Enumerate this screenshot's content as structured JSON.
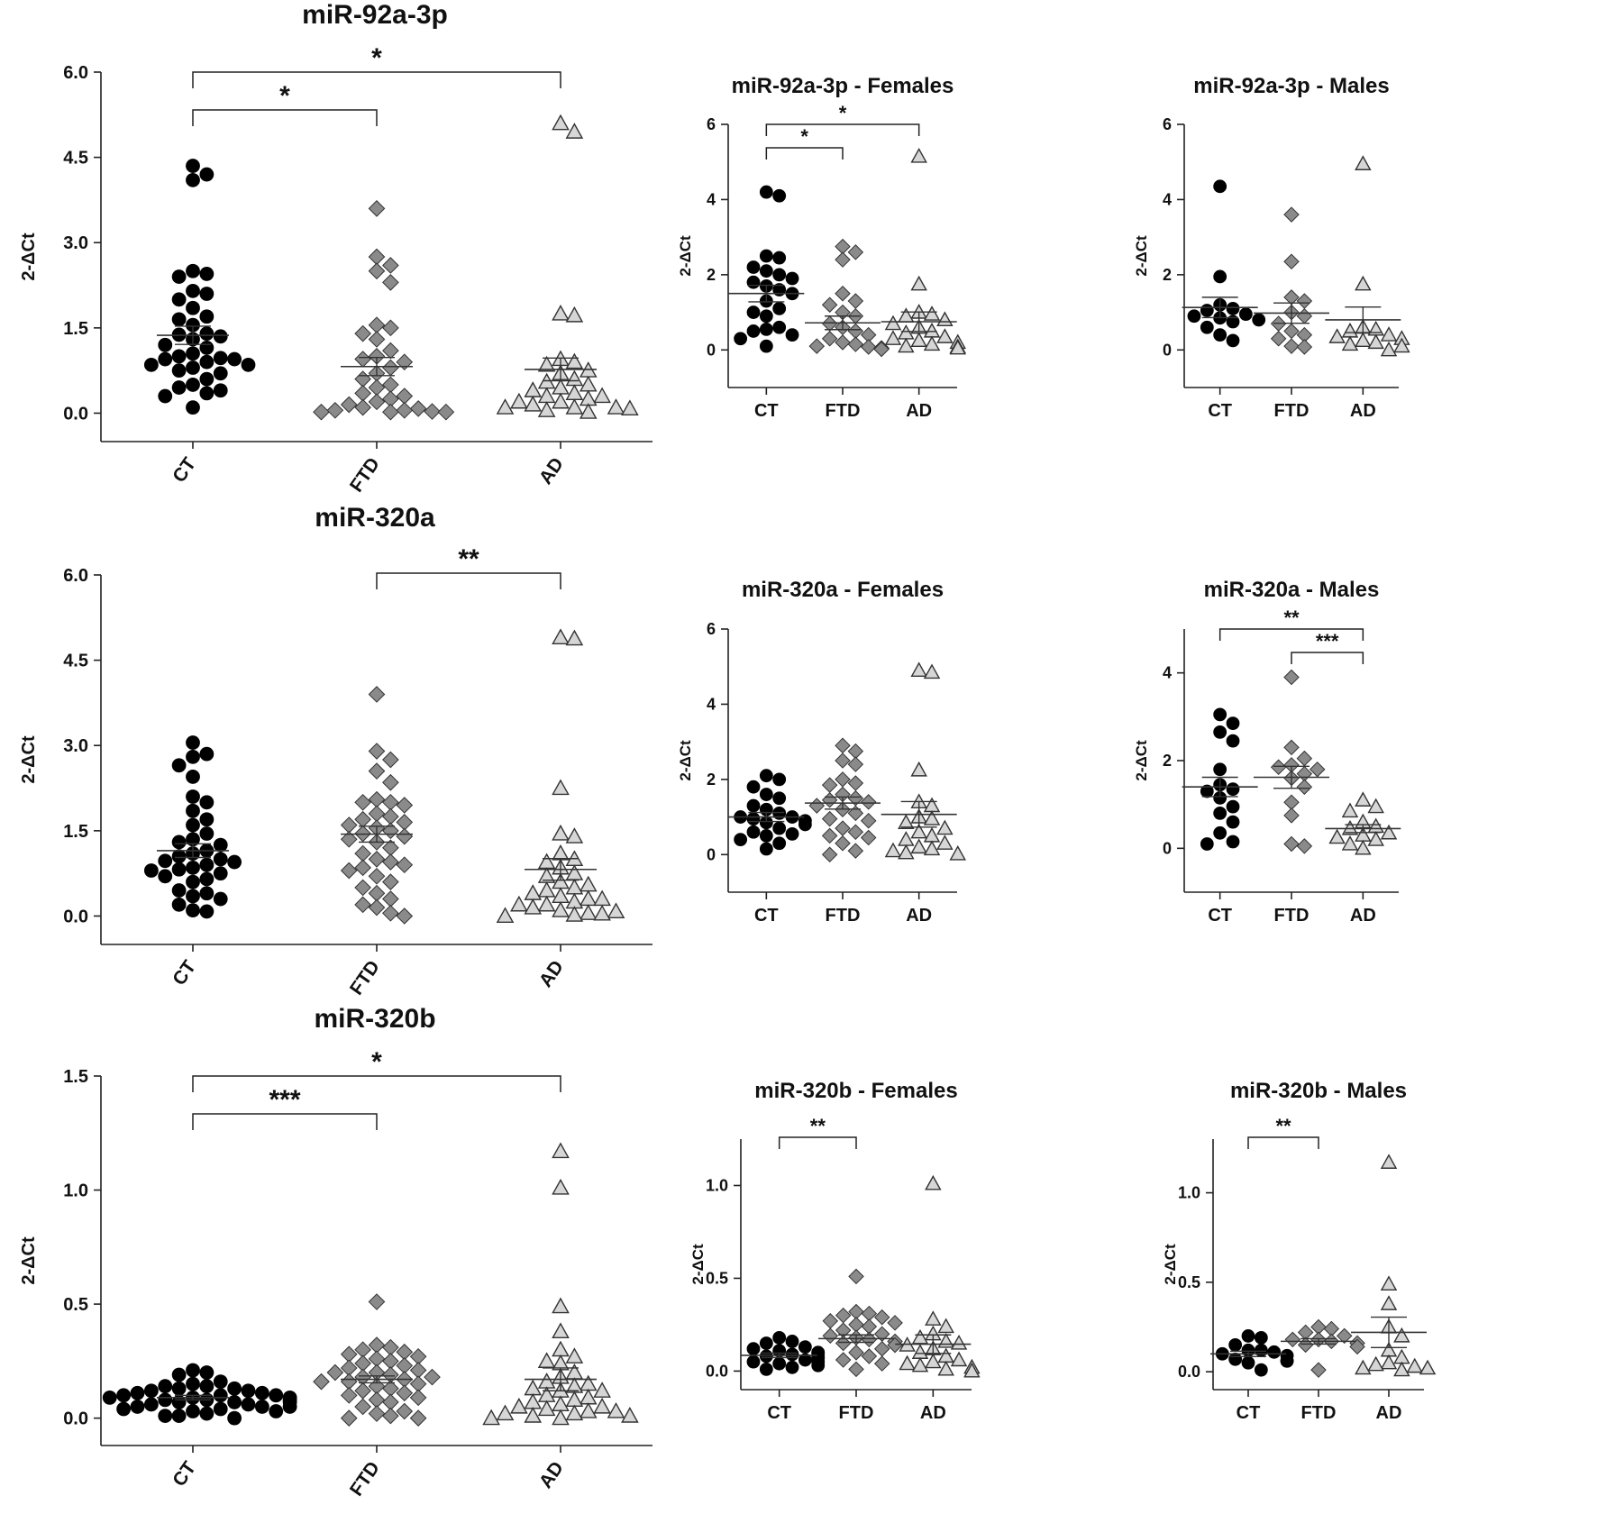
{
  "figure": {
    "colors": {
      "ct": "#000000",
      "ftd": "#8a8a8a",
      "ad": "#d6d6d6",
      "axis": "#222222",
      "text": "#111111"
    },
    "markers": {
      "ct": "circle",
      "ftd": "diamond",
      "ad": "triangle"
    }
  },
  "chart_data": [
    {
      "id": "mir92a-all",
      "type": "scatter",
      "title": "miR-92a-3p",
      "ylabel": "2-ΔCt",
      "categories": [
        "CT",
        "FTD",
        "AD"
      ],
      "rotated_labels": true,
      "ylim": [
        -0.5,
        6.0
      ],
      "yticks": [
        0.0,
        1.5,
        3.0,
        4.5,
        6.0
      ],
      "tick_labels": [
        "0.0",
        "1.5",
        "3.0",
        "4.5",
        "6.0"
      ],
      "means": [
        1.37,
        0.82,
        0.77
      ],
      "sems": [
        0.16,
        0.16,
        0.2
      ],
      "significance": [
        {
          "from": "CT",
          "to": "AD",
          "label": "*"
        },
        {
          "from": "CT",
          "to": "FTD",
          "label": "*"
        }
      ],
      "series": [
        {
          "name": "CT",
          "values": [
            4.1,
            4.2,
            4.35,
            2.5,
            2.45,
            2.4,
            2.15,
            2.1,
            2.0,
            1.85,
            1.7,
            1.65,
            1.55,
            1.4,
            1.38,
            1.35,
            1.3,
            1.2,
            1.15,
            1.05,
            1.0,
            0.97,
            0.95,
            0.95,
            0.9,
            0.85,
            0.85,
            0.8,
            0.75,
            0.7,
            0.6,
            0.5,
            0.45,
            0.4,
            0.35,
            0.3,
            0.1
          ]
        },
        {
          "name": "FTD",
          "values": [
            3.6,
            2.75,
            2.6,
            2.5,
            2.3,
            1.55,
            1.5,
            1.4,
            1.3,
            1.1,
            1.0,
            0.95,
            0.9,
            0.8,
            0.7,
            0.6,
            0.5,
            0.45,
            0.35,
            0.3,
            0.25,
            0.2,
            0.15,
            0.1,
            0.08,
            0.05,
            0.05,
            0.03,
            0.02,
            0.02,
            0.02
          ]
        },
        {
          "name": "AD",
          "values": [
            5.1,
            4.95,
            1.75,
            1.72,
            0.95,
            0.9,
            0.85,
            0.75,
            0.7,
            0.6,
            0.55,
            0.5,
            0.45,
            0.4,
            0.35,
            0.3,
            0.3,
            0.25,
            0.2,
            0.2,
            0.15,
            0.1,
            0.1,
            0.1,
            0.08,
            0.05,
            0.02
          ]
        }
      ]
    },
    {
      "id": "mir92a-females",
      "type": "scatter",
      "title": "miR-92a-3p - Females",
      "ylabel": "2-ΔCt",
      "categories": [
        "CT",
        "FTD",
        "AD"
      ],
      "rotated_labels": false,
      "ylim": [
        -1.0,
        6.0
      ],
      "yticks": [
        0,
        2,
        4,
        6
      ],
      "tick_labels": [
        "0",
        "2",
        "4",
        "6"
      ],
      "means": [
        1.5,
        0.72,
        0.75
      ],
      "sems": [
        0.22,
        0.18,
        0.26
      ],
      "significance": [
        {
          "from": "CT",
          "to": "AD",
          "label": "*"
        },
        {
          "from": "CT",
          "to": "FTD",
          "label": "*"
        }
      ],
      "series": [
        {
          "name": "CT",
          "values": [
            4.1,
            4.2,
            2.5,
            2.45,
            2.2,
            2.1,
            2.0,
            1.9,
            1.8,
            1.7,
            1.6,
            1.5,
            1.3,
            1.1,
            1.0,
            0.9,
            0.6,
            0.55,
            0.5,
            0.4,
            0.3,
            0.1
          ]
        },
        {
          "name": "FTD",
          "values": [
            2.75,
            2.6,
            2.4,
            1.5,
            1.3,
            1.2,
            1.0,
            0.9,
            0.7,
            0.6,
            0.5,
            0.4,
            0.3,
            0.2,
            0.15,
            0.1,
            0.08,
            0.05,
            0.05,
            0.03,
            0.02
          ]
        },
        {
          "name": "AD",
          "values": [
            5.15,
            1.75,
            1.0,
            0.95,
            0.9,
            0.8,
            0.7,
            0.6,
            0.5,
            0.45,
            0.35,
            0.3,
            0.25,
            0.2,
            0.15,
            0.1,
            0.08,
            0.05
          ]
        }
      ]
    },
    {
      "id": "mir92a-males",
      "type": "scatter",
      "title": "miR-92a-3p - Males",
      "ylabel": "2-ΔCt",
      "categories": [
        "CT",
        "FTD",
        "AD"
      ],
      "rotated_labels": false,
      "ylim": [
        -1.0,
        6.0
      ],
      "yticks": [
        0,
        2,
        4,
        6
      ],
      "tick_labels": [
        "0",
        "2",
        "4",
        "6"
      ],
      "means": [
        1.13,
        0.98,
        0.8
      ],
      "sems": [
        0.27,
        0.27,
        0.34
      ],
      "significance": [],
      "series": [
        {
          "name": "CT",
          "values": [
            4.35,
            1.95,
            1.2,
            1.1,
            1.05,
            0.95,
            0.9,
            0.85,
            0.8,
            0.75,
            0.6,
            0.4,
            0.25
          ]
        },
        {
          "name": "FTD",
          "values": [
            3.6,
            2.35,
            1.4,
            1.3,
            1.0,
            0.9,
            0.7,
            0.5,
            0.4,
            0.3,
            0.1,
            0.08
          ]
        },
        {
          "name": "AD",
          "values": [
            4.95,
            1.75,
            0.6,
            0.55,
            0.5,
            0.4,
            0.35,
            0.3,
            0.25,
            0.2,
            0.15,
            0.1,
            0.0
          ]
        }
      ]
    },
    {
      "id": "mir320a-all",
      "type": "scatter",
      "title": "miR-320a",
      "ylabel": "2-ΔCt",
      "categories": [
        "CT",
        "FTD",
        "AD"
      ],
      "rotated_labels": true,
      "ylim": [
        -0.5,
        6.0
      ],
      "yticks": [
        0.0,
        1.5,
        3.0,
        4.5,
        6.0
      ],
      "tick_labels": [
        "0.0",
        "1.5",
        "3.0",
        "4.5",
        "6.0"
      ],
      "means": [
        1.15,
        1.44,
        0.82
      ],
      "sems": [
        0.12,
        0.14,
        0.19
      ],
      "significance": [
        {
          "from": "FTD",
          "to": "AD",
          "label": "**"
        }
      ],
      "series": [
        {
          "name": "CT",
          "values": [
            3.05,
            2.85,
            2.8,
            2.65,
            2.45,
            2.1,
            2.0,
            1.85,
            1.7,
            1.6,
            1.45,
            1.35,
            1.3,
            1.25,
            1.15,
            1.1,
            1.05,
            1.0,
            0.97,
            0.95,
            0.9,
            0.85,
            0.82,
            0.8,
            0.75,
            0.7,
            0.65,
            0.6,
            0.45,
            0.4,
            0.35,
            0.3,
            0.2,
            0.1,
            0.08
          ]
        },
        {
          "name": "FTD",
          "values": [
            3.9,
            2.9,
            2.75,
            2.55,
            2.35,
            2.05,
            2.0,
            2.0,
            1.95,
            1.8,
            1.75,
            1.7,
            1.65,
            1.6,
            1.55,
            1.5,
            1.45,
            1.4,
            1.35,
            1.3,
            1.2,
            1.1,
            1.0,
            0.95,
            0.9,
            0.85,
            0.8,
            0.7,
            0.6,
            0.5,
            0.4,
            0.3,
            0.2,
            0.15,
            0.05,
            0.0
          ]
        },
        {
          "name": "AD",
          "values": [
            4.9,
            4.88,
            2.25,
            1.45,
            1.4,
            1.1,
            1.0,
            0.95,
            0.85,
            0.75,
            0.7,
            0.6,
            0.55,
            0.5,
            0.45,
            0.4,
            0.35,
            0.3,
            0.3,
            0.25,
            0.2,
            0.2,
            0.15,
            0.1,
            0.08,
            0.05,
            0.04,
            0.02,
            0.0
          ]
        }
      ]
    },
    {
      "id": "mir320a-females",
      "type": "scatter",
      "title": "miR-320a - Females",
      "ylabel": "2-ΔCt",
      "categories": [
        "CT",
        "FTD",
        "AD"
      ],
      "rotated_labels": false,
      "ylim": [
        -1.0,
        6.0
      ],
      "yticks": [
        0,
        2,
        4,
        6
      ],
      "tick_labels": [
        "0",
        "2",
        "4",
        "6"
      ],
      "means": [
        1.0,
        1.37,
        1.07
      ],
      "sems": [
        0.12,
        0.16,
        0.34
      ],
      "significance": [],
      "series": [
        {
          "name": "CT",
          "values": [
            2.1,
            2.0,
            1.8,
            1.6,
            1.5,
            1.3,
            1.2,
            1.1,
            1.0,
            1.0,
            0.95,
            0.9,
            0.85,
            0.8,
            0.7,
            0.6,
            0.55,
            0.5,
            0.4,
            0.3,
            0.15
          ]
        },
        {
          "name": "FTD",
          "values": [
            2.9,
            2.75,
            2.5,
            2.4,
            2.0,
            1.9,
            1.85,
            1.6,
            1.5,
            1.45,
            1.4,
            1.3,
            1.2,
            1.1,
            0.95,
            0.9,
            0.7,
            0.6,
            0.5,
            0.45,
            0.3,
            0.1,
            0.0
          ]
        },
        {
          "name": "AD",
          "values": [
            4.85,
            4.9,
            2.25,
            1.4,
            1.3,
            1.0,
            0.95,
            0.85,
            0.7,
            0.6,
            0.5,
            0.4,
            0.3,
            0.2,
            0.15,
            0.1,
            0.05,
            0.02
          ]
        }
      ]
    },
    {
      "id": "mir320a-males",
      "type": "scatter",
      "title": "miR-320a - Males",
      "ylabel": "2-ΔCt",
      "categories": [
        "CT",
        "FTD",
        "AD"
      ],
      "rotated_labels": false,
      "ylim": [
        -1.0,
        5.0
      ],
      "yticks": [
        0,
        2,
        4
      ],
      "tick_labels": [
        "0",
        "2",
        "4"
      ],
      "means": [
        1.4,
        1.62,
        0.45
      ],
      "sems": [
        0.22,
        0.25,
        0.09
      ],
      "significance": [
        {
          "from": "CT",
          "to": "AD",
          "label": "**"
        },
        {
          "from": "FTD",
          "to": "AD",
          "label": "***"
        }
      ],
      "series": [
        {
          "name": "CT",
          "values": [
            3.05,
            2.85,
            2.65,
            2.45,
            1.8,
            1.45,
            1.35,
            1.3,
            1.15,
            0.95,
            0.8,
            0.6,
            0.35,
            0.15,
            0.1
          ]
        },
        {
          "name": "FTD",
          "values": [
            3.9,
            2.3,
            2.05,
            1.9,
            1.85,
            1.8,
            1.7,
            1.6,
            1.4,
            1.05,
            0.75,
            0.1,
            0.05
          ]
        },
        {
          "name": "AD",
          "values": [
            1.1,
            0.95,
            0.85,
            0.6,
            0.5,
            0.45,
            0.35,
            0.3,
            0.25,
            0.2,
            0.1,
            0.0
          ]
        }
      ]
    },
    {
      "id": "mir320b-all",
      "type": "scatter",
      "title": "miR-320b",
      "ylabel": "2-ΔCt",
      "categories": [
        "CT",
        "FTD",
        "AD"
      ],
      "rotated_labels": true,
      "ylim": [
        -0.12,
        1.5
      ],
      "yticks": [
        0.0,
        0.5,
        1.0,
        1.5
      ],
      "tick_labels": [
        "0.0",
        "0.5",
        "1.0",
        "1.5"
      ],
      "means": [
        0.09,
        0.17,
        0.17
      ],
      "sems": [
        0.01,
        0.015,
        0.05
      ],
      "significance": [
        {
          "from": "CT",
          "to": "AD",
          "label": "*"
        },
        {
          "from": "CT",
          "to": "FTD",
          "label": "***"
        }
      ],
      "series": [
        {
          "name": "CT",
          "values": [
            0.21,
            0.2,
            0.19,
            0.16,
            0.15,
            0.14,
            0.14,
            0.13,
            0.13,
            0.12,
            0.12,
            0.11,
            0.11,
            0.1,
            0.1,
            0.1,
            0.09,
            0.09,
            0.09,
            0.08,
            0.08,
            0.08,
            0.07,
            0.07,
            0.07,
            0.06,
            0.06,
            0.05,
            0.05,
            0.05,
            0.04,
            0.04,
            0.03,
            0.03,
            0.02,
            0.01,
            0.01,
            0.0
          ]
        },
        {
          "name": "FTD",
          "values": [
            0.51,
            0.32,
            0.31,
            0.3,
            0.29,
            0.28,
            0.27,
            0.26,
            0.25,
            0.24,
            0.23,
            0.22,
            0.21,
            0.2,
            0.2,
            0.19,
            0.18,
            0.18,
            0.17,
            0.16,
            0.16,
            0.15,
            0.14,
            0.13,
            0.12,
            0.11,
            0.1,
            0.09,
            0.08,
            0.07,
            0.05,
            0.03,
            0.02,
            0.01,
            0.0,
            0.0
          ]
        },
        {
          "name": "AD",
          "values": [
            1.17,
            1.01,
            0.49,
            0.38,
            0.3,
            0.27,
            0.25,
            0.24,
            0.2,
            0.18,
            0.16,
            0.15,
            0.14,
            0.13,
            0.12,
            0.12,
            0.1,
            0.09,
            0.08,
            0.07,
            0.06,
            0.05,
            0.05,
            0.04,
            0.03,
            0.03,
            0.02,
            0.02,
            0.01,
            0.01,
            0.0,
            0.0
          ]
        }
      ]
    },
    {
      "id": "mir320b-females",
      "type": "scatter",
      "title": "miR-320b - Females",
      "ylabel": "2-ΔCt",
      "categories": [
        "CT",
        "FTD",
        "AD"
      ],
      "rotated_labels": false,
      "ylim": [
        -0.1,
        1.25
      ],
      "yticks": [
        0.0,
        0.5,
        1.0
      ],
      "tick_labels": [
        "0.0",
        "0.5",
        "1.0"
      ],
      "means": [
        0.085,
        0.175,
        0.145
      ],
      "sems": [
        0.012,
        0.02,
        0.05
      ],
      "significance": [
        {
          "from": "CT",
          "to": "FTD",
          "label": "**"
        }
      ],
      "series": [
        {
          "name": "CT",
          "values": [
            0.18,
            0.16,
            0.15,
            0.13,
            0.12,
            0.11,
            0.1,
            0.1,
            0.09,
            0.09,
            0.08,
            0.08,
            0.07,
            0.07,
            0.06,
            0.05,
            0.05,
            0.05,
            0.04,
            0.03,
            0.02,
            0.01
          ]
        },
        {
          "name": "FTD",
          "values": [
            0.51,
            0.32,
            0.31,
            0.3,
            0.29,
            0.27,
            0.26,
            0.25,
            0.24,
            0.22,
            0.2,
            0.19,
            0.18,
            0.17,
            0.16,
            0.15,
            0.14,
            0.12,
            0.1,
            0.08,
            0.06,
            0.04,
            0.01
          ]
        },
        {
          "name": "AD",
          "values": [
            1.01,
            0.28,
            0.24,
            0.2,
            0.18,
            0.16,
            0.15,
            0.14,
            0.12,
            0.1,
            0.08,
            0.06,
            0.05,
            0.04,
            0.03,
            0.02,
            0.01,
            0.0
          ]
        }
      ]
    },
    {
      "id": "mir320b-males",
      "type": "scatter",
      "title": "miR-320b - Males",
      "ylabel": "2-ΔCt",
      "categories": [
        "CT",
        "FTD",
        "AD"
      ],
      "rotated_labels": false,
      "ylim": [
        -0.1,
        1.3
      ],
      "yticks": [
        0.0,
        0.5,
        1.0
      ],
      "tick_labels": [
        "0.0",
        "0.5",
        "1.0"
      ],
      "means": [
        0.1,
        0.17,
        0.22
      ],
      "sems": [
        0.015,
        0.015,
        0.085
      ],
      "significance": [
        {
          "from": "CT",
          "to": "FTD",
          "label": "**"
        }
      ],
      "series": [
        {
          "name": "CT",
          "values": [
            0.2,
            0.19,
            0.15,
            0.12,
            0.12,
            0.11,
            0.1,
            0.09,
            0.07,
            0.06,
            0.06,
            0.05,
            0.01
          ]
        },
        {
          "name": "FTD",
          "values": [
            0.25,
            0.24,
            0.22,
            0.2,
            0.18,
            0.18,
            0.17,
            0.16,
            0.15,
            0.14,
            0.01
          ]
        },
        {
          "name": "AD",
          "values": [
            1.17,
            0.49,
            0.38,
            0.25,
            0.2,
            0.12,
            0.08,
            0.05,
            0.04,
            0.03,
            0.02,
            0.02,
            0.01
          ]
        }
      ]
    }
  ]
}
